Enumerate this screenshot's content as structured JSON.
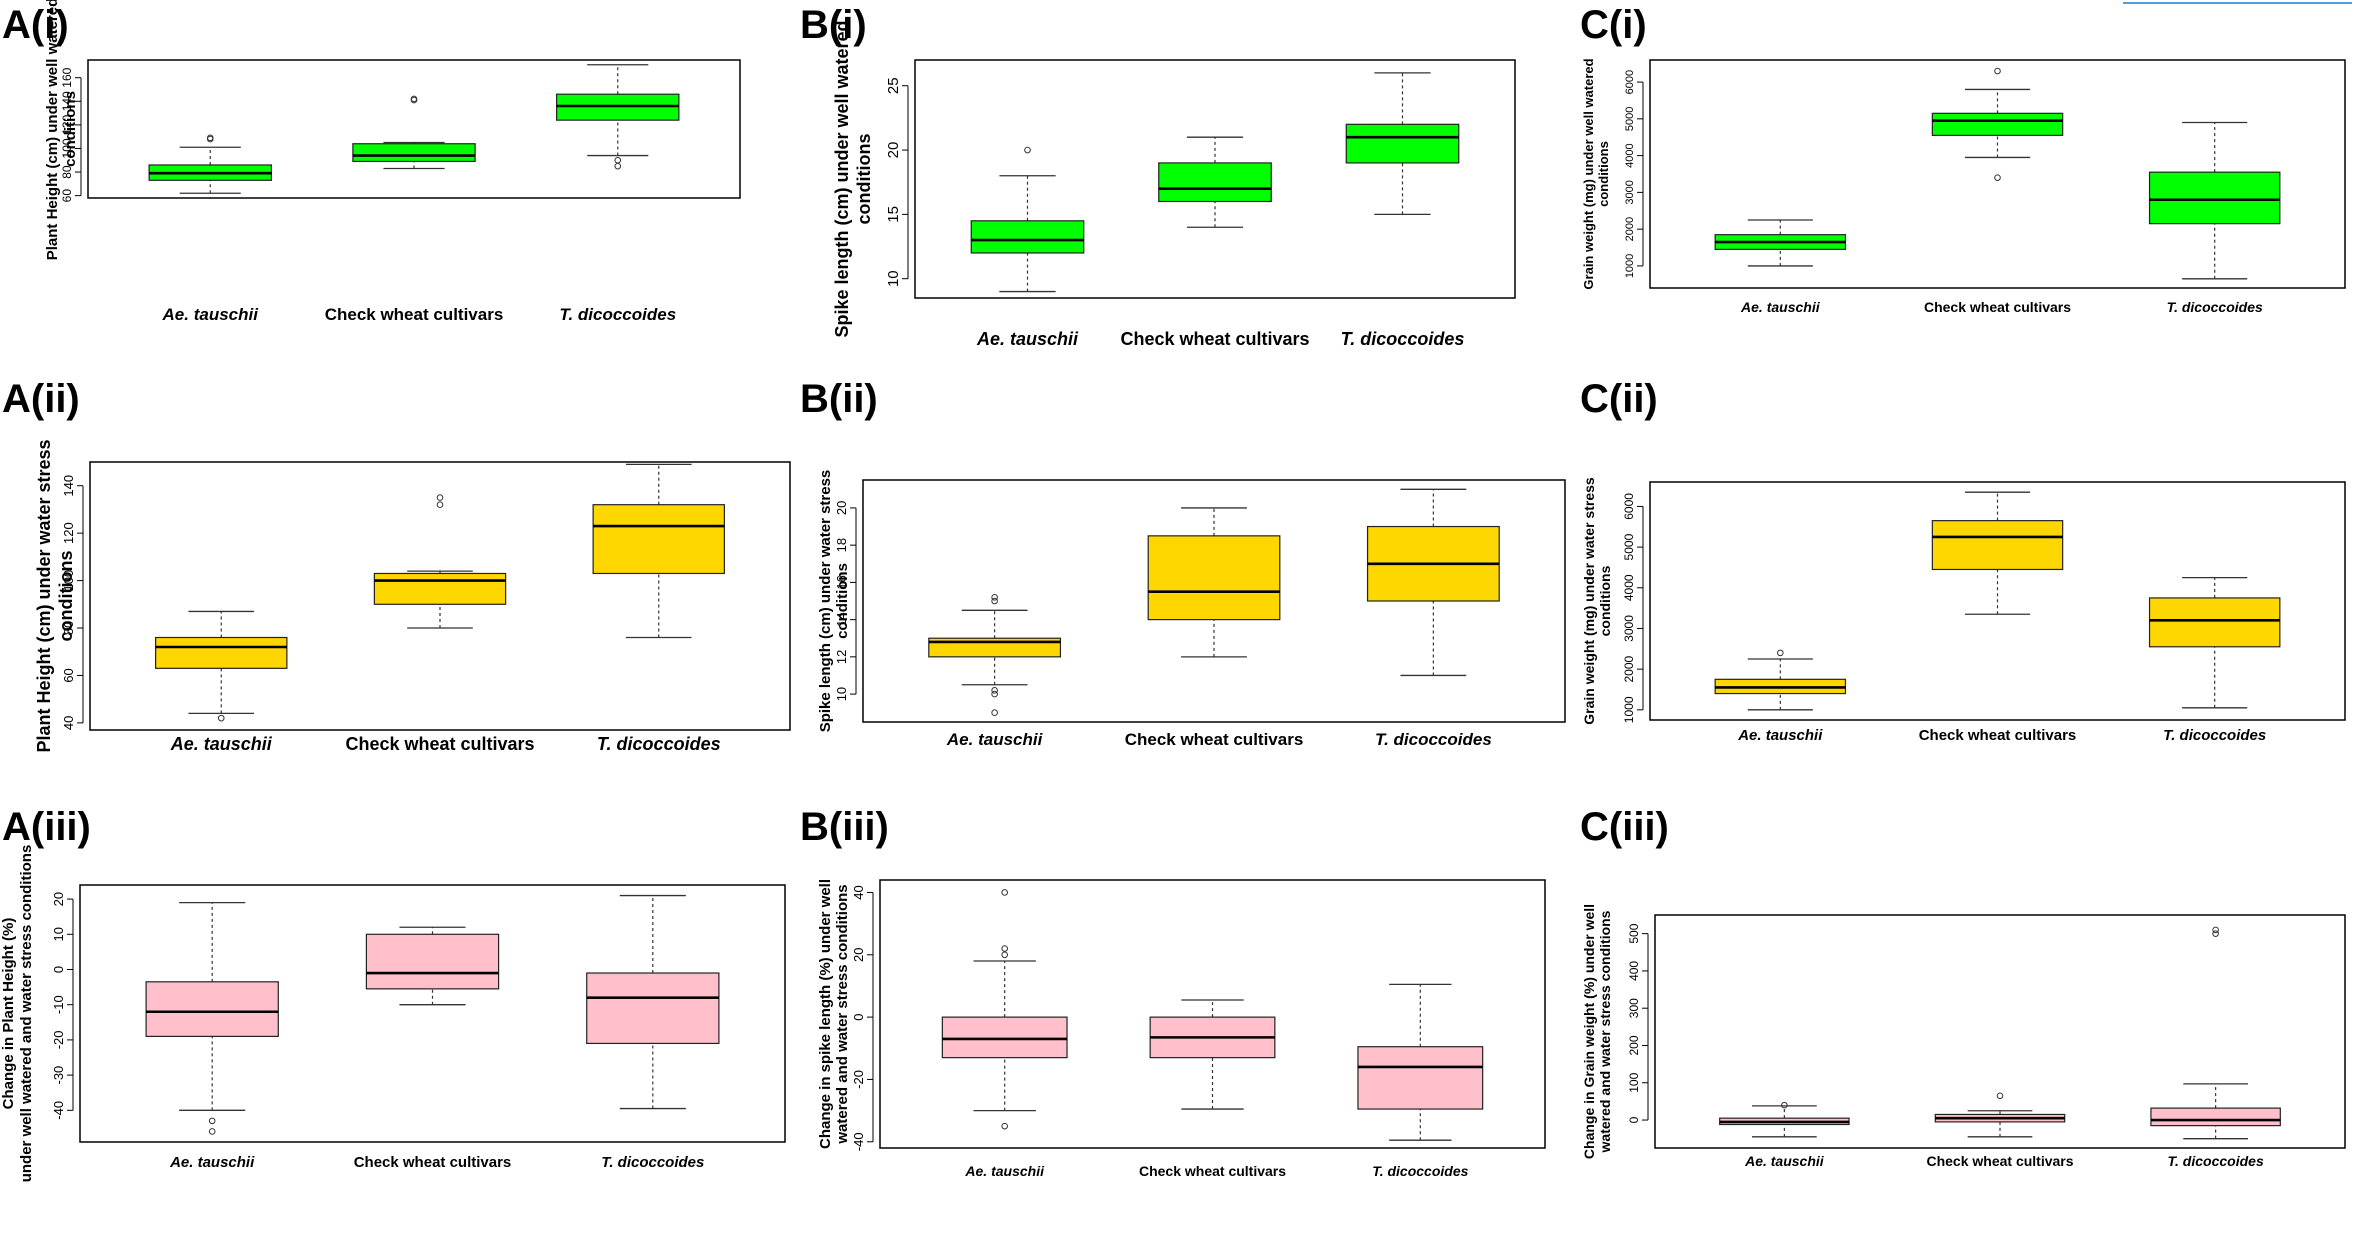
{
  "figure": {
    "colors": {
      "well_watered": "#00ff00",
      "water_stress": "#ffd700",
      "change": "#ffc0cb",
      "frame": "#000000",
      "whisker": "#333333"
    },
    "categories": [
      "Ae. tauschii",
      "Check wheat cultivars",
      "T. dicoccoides"
    ]
  },
  "chart_data": [
    {
      "id": "A(i)",
      "type": "box",
      "title": "A(i)",
      "ylabel_lines": [
        "Plant Height (cm)  under well watered",
        "conditions"
      ],
      "ylim": [
        58,
        175
      ],
      "yticks": [
        60,
        80,
        100,
        120,
        140,
        160
      ],
      "categories": [
        "Ae. tauschii",
        "Check wheat cultivars",
        "T. dicoccoides"
      ],
      "boxes": [
        {
          "min": 62,
          "q1": 73,
          "median": 79,
          "q3": 86,
          "max": 101,
          "outliers": [
            108,
            109
          ]
        },
        {
          "min": 83,
          "q1": 89,
          "median": 94,
          "q3": 104,
          "max": 105,
          "outliers": [
            141,
            142
          ]
        },
        {
          "min": 94,
          "q1": 124,
          "median": 136,
          "q3": 146,
          "max": 171,
          "outliers": [
            90,
            85
          ]
        }
      ],
      "fill": "well_watered"
    },
    {
      "id": "B(i)",
      "type": "box",
      "title": "B(i)",
      "ylabel_lines": [
        "Spike length (cm)  under well watered",
        "conditions"
      ],
      "ylim": [
        8.5,
        27
      ],
      "yticks": [
        10,
        15,
        20,
        25
      ],
      "categories": [
        "Ae. tauschii",
        "Check wheat cultivars",
        "T. dicoccoides"
      ],
      "boxes": [
        {
          "min": 9,
          "q1": 12,
          "median": 13,
          "q3": 14.5,
          "max": 18,
          "outliers": [
            20
          ]
        },
        {
          "min": 14,
          "q1": 16,
          "median": 17,
          "q3": 19,
          "max": 21,
          "outliers": []
        },
        {
          "min": 15,
          "q1": 19,
          "median": 21,
          "q3": 22,
          "max": 26,
          "outliers": []
        }
      ],
      "fill": "well_watered"
    },
    {
      "id": "C(i)",
      "type": "box",
      "title": "C(i)",
      "ylabel_lines": [
        "Grain weight (mg) under well watered",
        "conditions"
      ],
      "ylim": [
        400,
        6600
      ],
      "yticks": [
        1000,
        2000,
        3000,
        4000,
        5000,
        6000
      ],
      "categories": [
        "Ae. tauschii",
        "Check wheat cultivars",
        "T. dicoccoides"
      ],
      "boxes": [
        {
          "min": 1000,
          "q1": 1450,
          "median": 1650,
          "q3": 1850,
          "max": 2250,
          "outliers": []
        },
        {
          "min": 3950,
          "q1": 4550,
          "median": 4950,
          "q3": 5150,
          "max": 5800,
          "outliers": [
            6300,
            3400
          ]
        },
        {
          "min": 650,
          "q1": 2150,
          "median": 2800,
          "q3": 3550,
          "max": 4900,
          "outliers": []
        }
      ],
      "fill": "well_watered"
    },
    {
      "id": "A(ii)",
      "type": "box",
      "title": "A(ii)",
      "ylabel_lines": [
        "Plant Height (cm) under  water stress",
        "conditions"
      ],
      "ylim": [
        37,
        150
      ],
      "yticks": [
        40,
        60,
        80,
        100,
        120,
        140
      ],
      "categories": [
        "Ae. tauschii",
        "Check wheat cultivars",
        "T. dicoccoides"
      ],
      "boxes": [
        {
          "min": 44,
          "q1": 63,
          "median": 72,
          "q3": 76,
          "max": 87,
          "outliers": [
            42
          ]
        },
        {
          "min": 80,
          "q1": 90,
          "median": 100,
          "q3": 103,
          "max": 104,
          "outliers": [
            132,
            135
          ]
        },
        {
          "min": 76,
          "q1": 103,
          "median": 123,
          "q3": 132,
          "max": 149,
          "outliers": []
        }
      ],
      "fill": "water_stress"
    },
    {
      "id": "B(ii)",
      "type": "box",
      "title": "B(ii)",
      "ylabel_lines": [
        "Spike length (cm) under  water stress",
        "conditions"
      ],
      "ylim": [
        8.5,
        21.5
      ],
      "yticks": [
        10,
        12,
        14,
        16,
        18,
        20
      ],
      "categories": [
        "Ae. tauschii",
        "Check wheat cultivars",
        "T. dicoccoides"
      ],
      "boxes": [
        {
          "min": 10.5,
          "q1": 12,
          "median": 12.8,
          "q3": 13,
          "max": 14.5,
          "outliers": [
            15,
            15.2,
            10.2,
            10,
            9
          ]
        },
        {
          "min": 12,
          "q1": 14,
          "median": 15.5,
          "q3": 18.5,
          "max": 20,
          "outliers": []
        },
        {
          "min": 11,
          "q1": 15,
          "median": 17,
          "q3": 19,
          "max": 21,
          "outliers": []
        }
      ],
      "fill": "water_stress"
    },
    {
      "id": "C(ii)",
      "type": "box",
      "title": "C(ii)",
      "ylabel_lines": [
        "Grain weight (mg) under  water stress",
        "conditions"
      ],
      "ylim": [
        750,
        6600
      ],
      "yticks": [
        1000,
        2000,
        3000,
        4000,
        5000,
        6000
      ],
      "categories": [
        "Ae. tauschii",
        "Check wheat cultivars",
        "T. dicoccoides"
      ],
      "boxes": [
        {
          "min": 1000,
          "q1": 1400,
          "median": 1550,
          "q3": 1750,
          "max": 2250,
          "outliers": [
            2400
          ]
        },
        {
          "min": 3350,
          "q1": 4450,
          "median": 5250,
          "q3": 5650,
          "max": 6350,
          "outliers": []
        },
        {
          "min": 1050,
          "q1": 2550,
          "median": 3200,
          "q3": 3750,
          "max": 4250,
          "outliers": []
        }
      ],
      "fill": "water_stress"
    },
    {
      "id": "A(iii)",
      "type": "box",
      "title": "A(iii)",
      "ylabel_lines": [
        "Change in Plant Height (%)",
        "under well watered and water stress conditions"
      ],
      "ylim": [
        -49,
        24
      ],
      "yticks": [
        -40,
        -30,
        -20,
        -10,
        0,
        10,
        20
      ],
      "categories": [
        "Ae. tauschii",
        "Check wheat cultivars",
        "T. dicoccoides"
      ],
      "boxes": [
        {
          "min": -40,
          "q1": -19,
          "median": -12,
          "q3": -3.5,
          "max": 19,
          "outliers": [
            -43,
            -46
          ]
        },
        {
          "min": -10,
          "q1": -5.5,
          "median": -1,
          "q3": 10,
          "max": 12,
          "outliers": []
        },
        {
          "min": -39.5,
          "q1": -21,
          "median": -8,
          "q3": -1,
          "max": 21,
          "outliers": []
        }
      ],
      "fill": "change"
    },
    {
      "id": "B(iii)",
      "type": "box",
      "title": "B(iii)",
      "ylabel_lines": [
        "Change in spike length (%) under well",
        "watered and water stress conditions"
      ],
      "ylim": [
        -42,
        44
      ],
      "yticks": [
        -40,
        -20,
        0,
        20,
        40
      ],
      "categories": [
        "Ae. tauschii",
        "Check wheat cultivars",
        "T. dicoccoides"
      ],
      "boxes": [
        {
          "min": -30,
          "q1": -13,
          "median": -7,
          "q3": 0,
          "max": 18,
          "outliers": [
            20,
            22,
            40,
            -35
          ]
        },
        {
          "min": -29.5,
          "q1": -13,
          "median": -6.5,
          "q3": 0,
          "max": 5.5,
          "outliers": []
        },
        {
          "min": -39.5,
          "q1": -29.5,
          "median": -16,
          "q3": -9.5,
          "max": 10.5,
          "outliers": []
        }
      ],
      "fill": "change"
    },
    {
      "id": "C(iii)",
      "type": "box",
      "title": "C(iii)",
      "ylabel_lines": [
        "Change in Grain weight (%) under well",
        "watered and water stress conditions"
      ],
      "ylim": [
        -75,
        550
      ],
      "yticks": [
        0,
        100,
        200,
        300,
        400,
        500
      ],
      "categories": [
        "Ae. tauschii",
        "Check wheat cultivars",
        "T. dicoccoides"
      ],
      "boxes": [
        {
          "min": -45,
          "q1": -12,
          "median": -5,
          "q3": 5,
          "max": 38,
          "outliers": [
            40
          ]
        },
        {
          "min": -45,
          "q1": -5,
          "median": 5,
          "q3": 15,
          "max": 25,
          "outliers": [
            65
          ]
        },
        {
          "min": -50,
          "q1": -15,
          "median": 0,
          "q3": 32,
          "max": 97,
          "outliers": [
            500,
            510
          ]
        }
      ],
      "fill": "change"
    }
  ]
}
